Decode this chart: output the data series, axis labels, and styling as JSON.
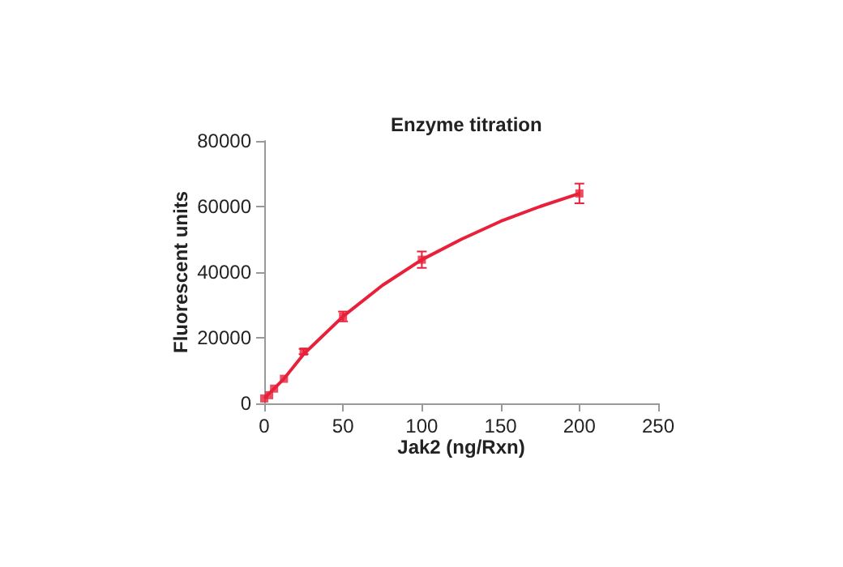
{
  "chart_data": {
    "type": "scatter",
    "title": "Enzyme titration",
    "xlabel": "Jak2 (ng/Rxn)",
    "ylabel": "Fluorescent units",
    "series": [
      {
        "color": "#e8203a",
        "marker": "square",
        "x": [
          0,
          3.125,
          6.25,
          12.5,
          25,
          50,
          100,
          200
        ],
        "values": [
          1500,
          2500,
          4500,
          7500,
          15800,
          26500,
          43800,
          64000
        ],
        "errors": [
          null,
          null,
          null,
          null,
          800,
          1500,
          2500,
          3000
        ]
      },
      {
        "type": "line",
        "color": "#e8203a",
        "line_style": "solid",
        "x": [
          0,
          12.5,
          25,
          50,
          75,
          100,
          125,
          150,
          175,
          200
        ],
        "values": [
          1500,
          7500,
          15000,
          26500,
          36000,
          43800,
          50000,
          55500,
          60000,
          64000
        ]
      }
    ],
    "grid": false,
    "xlim": [
      0,
      250
    ],
    "xticks": [
      0,
      50,
      100,
      150,
      200,
      250
    ],
    "ylim": [
      0,
      80000
    ],
    "yticks": [
      0,
      20000,
      40000,
      60000,
      80000
    ]
  }
}
